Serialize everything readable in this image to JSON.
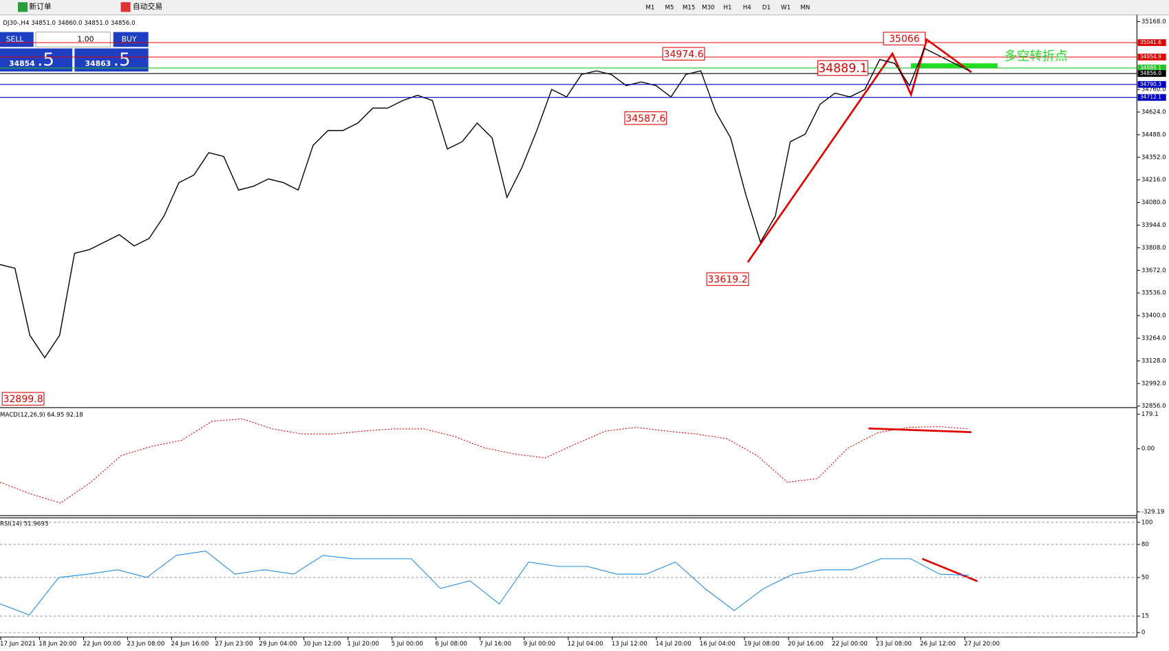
{
  "toolbar": {
    "new_order": "新订单",
    "auto_trading": "自动交易",
    "timeframes": [
      "M1",
      "M5",
      "M15",
      "M30",
      "H1",
      "H4",
      "D1",
      "W1",
      "MN"
    ]
  },
  "order_panel": {
    "sell": "SELL",
    "lot": "1.00",
    "buy": "BUY",
    "bid_main": "34854",
    "bid_tail": ".5",
    "ask_main": "34863",
    "ask_tail": ".5"
  },
  "time_axis": [
    "17 Jun 2021",
    "18 Jun 20:00",
    "22 Jun 00:00",
    "23 Jun 08:00",
    "24 Jun 16:00",
    "27 Jun 23:00",
    "29 Jun 04:00",
    "30 Jun 12:00",
    "1 Jul 20:00",
    "5 Jul 00:00",
    "6 Jul 08:00",
    "7 Jul 16:00",
    "9 Jul 00:00",
    "12 Jul 04:00",
    "13 Jul 12:00",
    "14 Jul 20:00",
    "16 Jul 04:00",
    "19 Jul 08:00",
    "20 Jul 16:00",
    "22 Jul 00:00",
    "23 Jul 08:00",
    "26 Jul 12:00",
    "27 Jul 20:00"
  ],
  "chart_data": [
    {
      "type": "line",
      "title": "DJ30-,H4  34851.0 34860.0 34851.0 34856.0",
      "color": "#000000",
      "values": [
        33707,
        33685,
        33282,
        33147,
        33282,
        33775,
        33797,
        33842,
        33887,
        33819,
        33864,
        33999,
        34200,
        34245,
        34380,
        34357,
        34155,
        34178,
        34222,
        34200,
        34155,
        34424,
        34513,
        34513,
        34558,
        34648,
        34648,
        34693,
        34725,
        34693,
        34402,
        34446,
        34558,
        34469,
        34111,
        34290,
        34513,
        34760,
        34715,
        34850,
        34872,
        34850,
        34783,
        34805,
        34783,
        34715,
        34850,
        34872,
        34626,
        34469,
        34133,
        33842,
        33999,
        34446,
        34491,
        34671,
        34738,
        34715,
        34760,
        34940,
        34917,
        34783,
        35007,
        34962,
        34917,
        34872
      ],
      "ylim": [
        32856,
        35168
      ],
      "yticks": [
        {
          "value": 35168,
          "label": "35168.0"
        },
        {
          "value": 34760,
          "label": "34760.0"
        },
        {
          "value": 34624,
          "label": "34624.0"
        },
        {
          "value": 34488,
          "label": "34488.0"
        },
        {
          "value": 34352,
          "label": "34352.0"
        },
        {
          "value": 34216,
          "label": "34216.0"
        },
        {
          "value": 34080,
          "label": "34080.0"
        },
        {
          "value": 33944,
          "label": "33944.0"
        },
        {
          "value": 33808,
          "label": "33808.0"
        },
        {
          "value": 33672,
          "label": "33672.0"
        },
        {
          "value": 33536,
          "label": "33536.0"
        },
        {
          "value": 33400,
          "label": "33400.0"
        },
        {
          "value": 33264,
          "label": "33264.0"
        },
        {
          "value": 33128,
          "label": "33128.0"
        },
        {
          "value": 32992,
          "label": "32992.0"
        },
        {
          "value": 32856,
          "label": "32856.0"
        }
      ],
      "price_levels": [
        {
          "value": 35041.6,
          "color": "#e00000"
        },
        {
          "value": 34954.9,
          "color": "#e00000"
        },
        {
          "value": 34889.1,
          "color": "#22c022"
        },
        {
          "value": 34856,
          "label": "34856.0",
          "color": "#000000"
        },
        {
          "value": 34790.3,
          "color": "#0000c0"
        },
        {
          "value": 34712.1,
          "color": "#0000c0"
        }
      ],
      "annotations": [
        32899.8,
        33619.2,
        34587.6,
        34974.6,
        35066.0,
        34889.1
      ],
      "note": "多空转折点"
    },
    {
      "type": "line",
      "title": "MACD(12,26,9) 64.95 92.18",
      "color": "#e00000",
      "values": [
        -175,
        -235,
        -283,
        -175,
        -36,
        12,
        44,
        143,
        155,
        103,
        76,
        76,
        92,
        103,
        103,
        64,
        4,
        -28,
        -48,
        24,
        92,
        111,
        92,
        76,
        52,
        -36,
        -175,
        -155,
        4,
        84,
        111,
        115,
        103
      ],
      "ylim": [
        -329.19,
        179.1
      ],
      "yticks": [
        179.1,
        {
          "value": 0,
          "label": "0.00"
        },
        -329.19
      ]
    },
    {
      "type": "line",
      "title": "RSI(14) 51.9693",
      "color": "#1e8ce6",
      "values": [
        26,
        16,
        50,
        53,
        57,
        50,
        70,
        74,
        53,
        57,
        53,
        70,
        67,
        67,
        67,
        40,
        47,
        26,
        64,
        60,
        60,
        53,
        53,
        64,
        40,
        20,
        40,
        53,
        57,
        57,
        67,
        67,
        53,
        52
      ],
      "ylim": [
        0,
        100
      ],
      "yticks": [
        100,
        80,
        50,
        15,
        0
      ],
      "grid": true
    }
  ]
}
